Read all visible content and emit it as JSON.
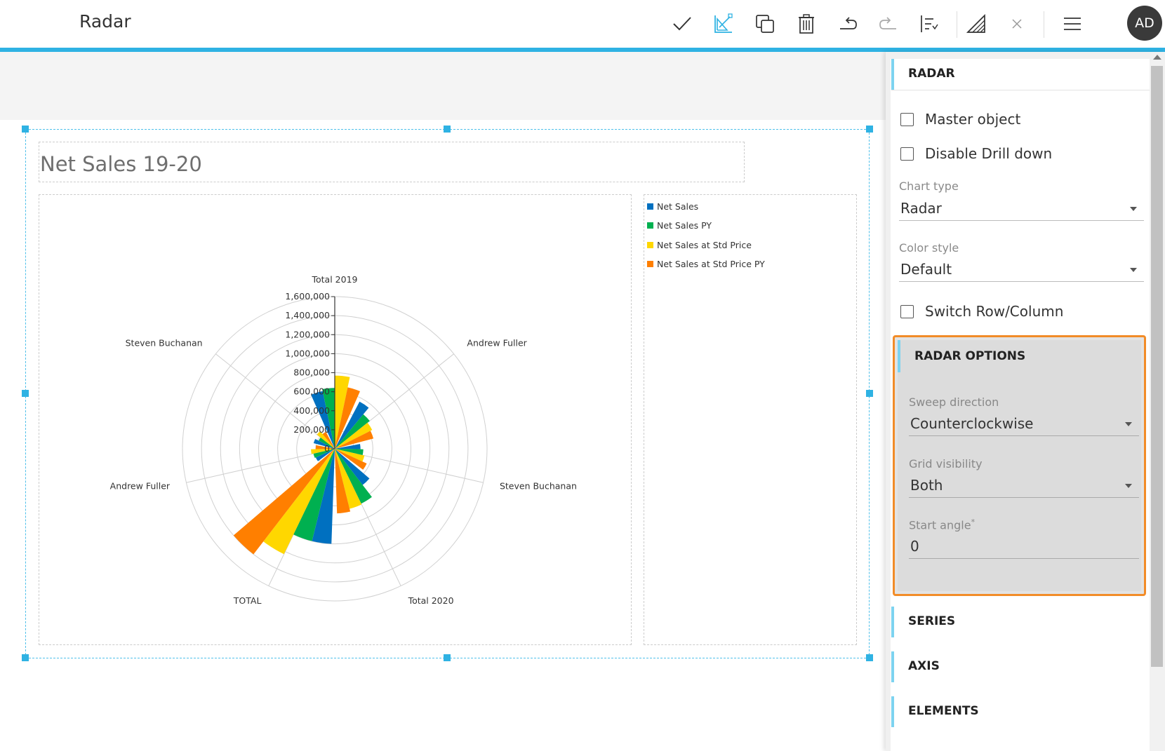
{
  "app": {
    "title": "Radar",
    "avatar_initials": "AD"
  },
  "toolbar": {
    "icons": [
      "check-icon",
      "chart-edit-icon",
      "duplicate-icon",
      "trash-icon",
      "undo-icon",
      "redo-icon",
      "sort-icon",
      "draw-icon",
      "close-icon",
      "menu-icon"
    ],
    "accent_color": "#2fb2e3"
  },
  "widget": {
    "title": "Net Sales 19-20",
    "legend": [
      {
        "label": "Net Sales",
        "color": "#0070c0"
      },
      {
        "label": "Net Sales PY",
        "color": "#00b050"
      },
      {
        "label": "Net Sales at Std Price",
        "color": "#ffd700"
      },
      {
        "label": "Net Sales at Std Price PY",
        "color": "#ff7f00"
      }
    ]
  },
  "chart_data": {
    "type": "radar",
    "subtype": "column",
    "categories": [
      "Total 2019",
      "Steven Buchanan",
      "Andrew Fuller",
      "TOTAL",
      "Total 2020",
      "Steven Buchanan",
      "Andrew Fuller"
    ],
    "radial_ticks": [
      "0",
      "200,000",
      "400,000",
      "600,000",
      "800,000",
      "1,000,000",
      "1,200,000",
      "1,400,000",
      "1,600,000"
    ],
    "rlim": [
      0,
      1600000
    ],
    "sweep_direction": "Counterclockwise",
    "series": [
      {
        "name": "Net Sales",
        "color": "#0070c0",
        "values": [
          620000,
          230000,
          220000,
          1000000,
          480000,
          270000,
          560000
        ]
      },
      {
        "name": "Net Sales PY",
        "color": "#00b050",
        "values": [
          640000,
          190000,
          230000,
          1000000,
          640000,
          300000,
          470000
        ]
      },
      {
        "name": "Net Sales at Std Price",
        "color": "#ffd700",
        "values": [
          770000,
          240000,
          250000,
          1230000,
          650000,
          320000,
          440000
        ]
      },
      {
        "name": "Net Sales at Std Price PY",
        "color": "#ff7f00",
        "values": [
          660000,
          200000,
          200000,
          1400000,
          680000,
          370000,
          420000
        ]
      }
    ],
    "grid": true,
    "legend_position": "right"
  },
  "panel": {
    "section_title": "RADAR",
    "master_object_label": "Master object",
    "disable_drill_label": "Disable Drill down",
    "chart_type_label": "Chart type",
    "chart_type_value": "Radar",
    "color_style_label": "Color style",
    "color_style_value": "Default",
    "switch_label": "Switch Row/Column",
    "radar_options": {
      "title": "RADAR OPTIONS",
      "sweep_label": "Sweep direction",
      "sweep_value": "Counterclockwise",
      "grid_label": "Grid visibility",
      "grid_value": "Both",
      "start_angle_label": "Start angle",
      "start_angle_required": "*",
      "start_angle_value": "0",
      "highlight_color": "#f28c28"
    },
    "series_title": "SERIES",
    "axis_title": "AXIS",
    "elements_title": "ELEMENTS"
  }
}
